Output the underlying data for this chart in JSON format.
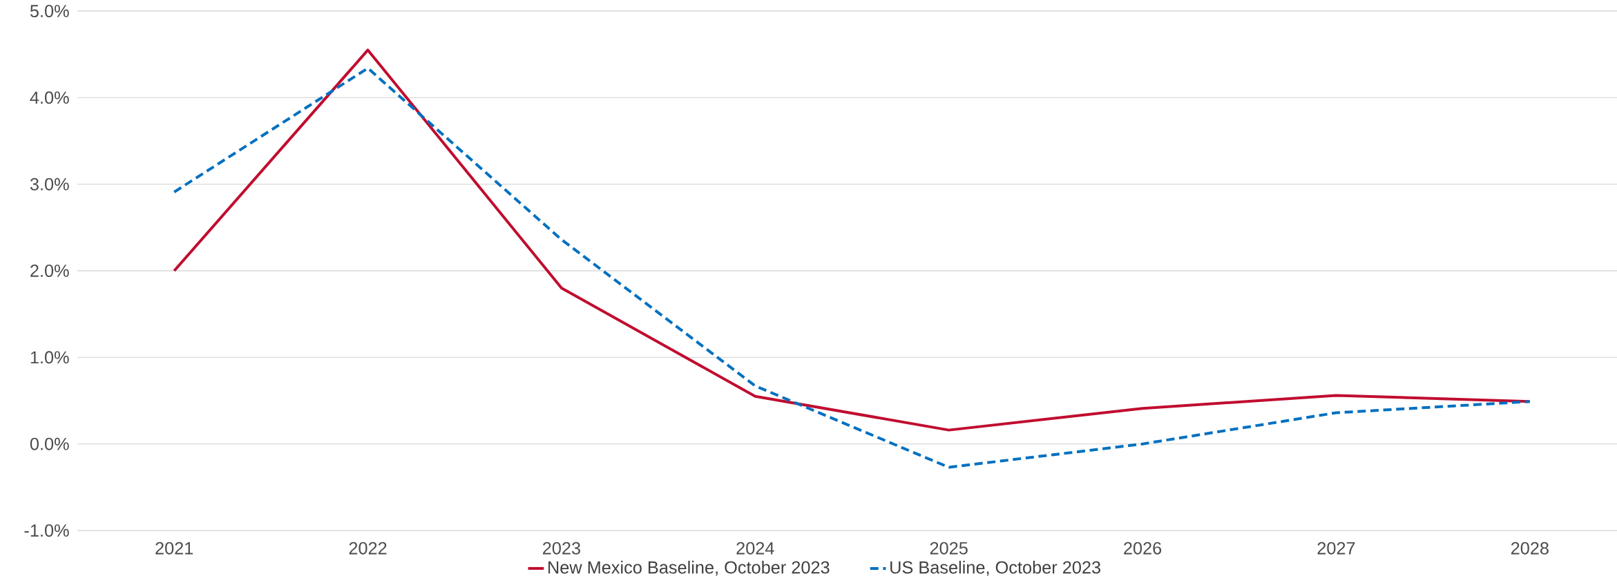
{
  "chart_data": {
    "type": "line",
    "categories": [
      "2021",
      "2022",
      "2023",
      "2024",
      "2025",
      "2026",
      "2027",
      "2028"
    ],
    "series": [
      {
        "name": "New Mexico Baseline, October 2023",
        "color": "#c00d2f",
        "line_style": "solid",
        "values": [
          2.0,
          4.55,
          1.8,
          0.55,
          0.16,
          0.41,
          0.56,
          0.49
        ]
      },
      {
        "name": "US Baseline, October 2023",
        "color": "#0070c0",
        "line_style": "dashed",
        "values": [
          2.91,
          4.34,
          2.36,
          0.67,
          -0.27,
          0.0,
          0.36,
          0.49
        ]
      }
    ],
    "ylim": [
      -1,
      5
    ],
    "yticks": [
      {
        "value": -1,
        "label": "-1.0%"
      },
      {
        "value": 0,
        "label": "0.0%"
      },
      {
        "value": 1,
        "label": "1.0%"
      },
      {
        "value": 2,
        "label": "2.0%"
      },
      {
        "value": 3,
        "label": "3.0%"
      },
      {
        "value": 4,
        "label": "4.0%"
      },
      {
        "value": 5,
        "label": "5.0%"
      }
    ],
    "grid": "y",
    "legend": "bottom",
    "marker": "none"
  }
}
